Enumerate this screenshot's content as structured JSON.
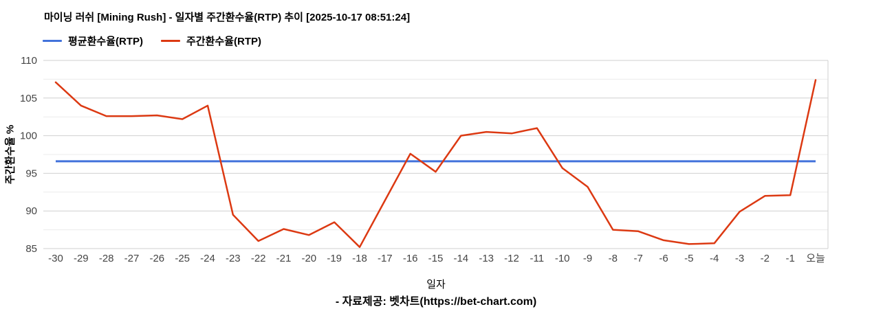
{
  "header": {
    "title": "마이닝 러쉬 [Mining Rush] - 일자별 주간환수율(RTP) 추이 [2025-10-17 08:51:24]"
  },
  "footer": {
    "attribution": "- 자료제공: 벳차트(https://bet-chart.com)"
  },
  "colors": {
    "average_line": "#4272db",
    "weekly_line": "#dc3912",
    "grid_major": "#cfcfcf",
    "grid_minor": "#ececec",
    "tick_text": "#444444"
  },
  "chart_data": {
    "type": "line",
    "title": "마이닝 러쉬 [Mining Rush] - 일자별 주간환수율(RTP) 추이 [2025-10-17 08:51:24]",
    "xlabel": "일자",
    "ylabel": "주간환수율 %",
    "ylim": [
      85,
      110
    ],
    "ytick_step": 5,
    "grid_step": 2.5,
    "grid": true,
    "legend_position": "top",
    "categories": [
      "-30",
      "-29",
      "-28",
      "-27",
      "-26",
      "-25",
      "-24",
      "-23",
      "-22",
      "-21",
      "-20",
      "-19",
      "-18",
      "-17",
      "-16",
      "-15",
      "-14",
      "-13",
      "-12",
      "-11",
      "-10",
      "-9",
      "-8",
      "-7",
      "-6",
      "-5",
      "-4",
      "-3",
      "-2",
      "-1",
      "오늘"
    ],
    "series": [
      {
        "name": "평균환수율(RTP)",
        "type": "constant",
        "value": 96.6,
        "color": "#4272db"
      },
      {
        "name": "주간환수율(RTP)",
        "type": "line",
        "color": "#dc3912",
        "values": [
          107.1,
          104.0,
          102.6,
          102.6,
          102.7,
          102.2,
          104.0,
          89.5,
          86.0,
          87.6,
          86.8,
          88.5,
          85.2,
          91.4,
          97.6,
          95.2,
          100.0,
          100.5,
          100.3,
          101.0,
          95.7,
          93.2,
          87.5,
          87.3,
          86.1,
          85.6,
          85.7,
          89.9,
          92.0,
          92.1,
          107.4
        ]
      }
    ]
  }
}
